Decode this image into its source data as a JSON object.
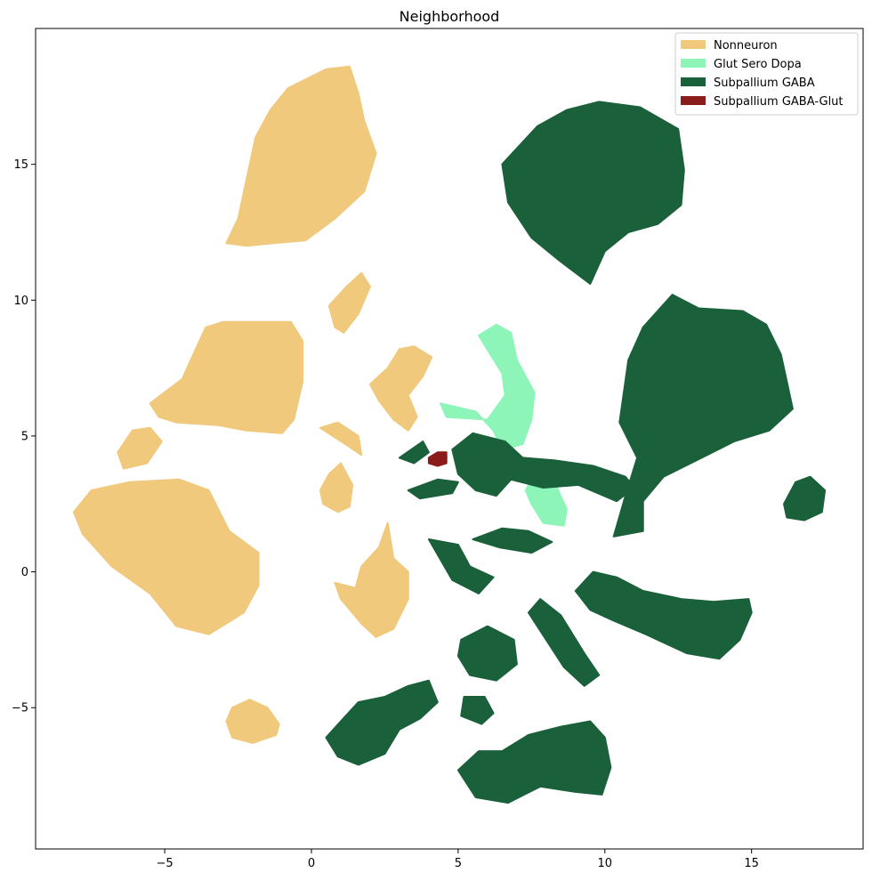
{
  "chart_data": {
    "type": "scatter",
    "title": "Neighborhood",
    "xlabel": "",
    "ylabel": "",
    "xlim": [
      -9.4,
      18.8
    ],
    "ylim": [
      -10.2,
      20.0
    ],
    "xticks": [
      -5,
      0,
      5,
      10,
      15
    ],
    "yticks": [
      -5,
      0,
      5,
      10,
      15
    ],
    "grid": false,
    "legend_position": "top-right",
    "series": [
      {
        "name": "Nonneuron",
        "color": "#f0c97d",
        "clusters": [
          [
            [
              -2.9,
              12.1
            ],
            [
              -2.5,
              13.0
            ],
            [
              -2.2,
              14.5
            ],
            [
              -1.9,
              16.0
            ],
            [
              -1.4,
              17.0
            ],
            [
              -0.8,
              17.8
            ],
            [
              0.5,
              18.5
            ],
            [
              1.3,
              18.6
            ],
            [
              1.6,
              17.6
            ],
            [
              1.8,
              16.6
            ],
            [
              2.2,
              15.4
            ],
            [
              1.8,
              14.0
            ],
            [
              0.8,
              13.0
            ],
            [
              -0.2,
              12.2
            ],
            [
              -1.3,
              12.1
            ],
            [
              -2.2,
              12.0
            ]
          ],
          [
            [
              -3.6,
              9.0
            ],
            [
              -3.0,
              9.2
            ],
            [
              -0.7,
              9.2
            ],
            [
              -0.3,
              8.5
            ],
            [
              -0.3,
              7.0
            ],
            [
              -0.6,
              5.6
            ],
            [
              -1.0,
              5.1
            ],
            [
              -2.2,
              5.2
            ],
            [
              -3.2,
              5.4
            ],
            [
              -4.6,
              5.5
            ],
            [
              -5.2,
              5.7
            ],
            [
              -5.5,
              6.2
            ],
            [
              -4.4,
              7.1
            ],
            [
              -3.9,
              8.3
            ]
          ],
          [
            [
              -8.1,
              2.2
            ],
            [
              -7.5,
              3.0
            ],
            [
              -6.2,
              3.3
            ],
            [
              -4.5,
              3.4
            ],
            [
              -3.5,
              3.0
            ],
            [
              -2.8,
              1.5
            ],
            [
              -1.8,
              0.7
            ],
            [
              -1.8,
              -0.5
            ],
            [
              -2.3,
              -1.5
            ],
            [
              -3.5,
              -2.3
            ],
            [
              -4.6,
              -2.0
            ],
            [
              -5.5,
              -0.8
            ],
            [
              -6.8,
              0.2
            ],
            [
              -7.8,
              1.4
            ]
          ],
          [
            [
              -6.6,
              4.4
            ],
            [
              -6.1,
              5.2
            ],
            [
              -5.5,
              5.3
            ],
            [
              -5.1,
              4.8
            ],
            [
              -5.6,
              4.0
            ],
            [
              -6.4,
              3.8
            ]
          ],
          [
            [
              -2.7,
              -5.0
            ],
            [
              -2.1,
              -4.7
            ],
            [
              -1.5,
              -5.0
            ],
            [
              -1.1,
              -5.6
            ],
            [
              -1.2,
              -6.0
            ],
            [
              -2.0,
              -6.3
            ],
            [
              -2.7,
              -6.1
            ],
            [
              -2.9,
              -5.5
            ]
          ],
          [
            [
              0.8,
              9.0
            ],
            [
              0.6,
              9.8
            ],
            [
              1.2,
              10.5
            ],
            [
              1.7,
              11.0
            ],
            [
              2.0,
              10.5
            ],
            [
              1.6,
              9.5
            ],
            [
              1.1,
              8.8
            ]
          ],
          [
            [
              2.6,
              7.5
            ],
            [
              3.0,
              8.2
            ],
            [
              3.5,
              8.3
            ],
            [
              4.1,
              7.9
            ],
            [
              3.8,
              7.2
            ],
            [
              3.3,
              6.5
            ],
            [
              3.6,
              5.7
            ],
            [
              3.3,
              5.2
            ],
            [
              2.8,
              5.6
            ],
            [
              2.3,
              6.3
            ],
            [
              2.0,
              6.9
            ]
          ],
          [
            [
              1.5,
              -0.6
            ],
            [
              1.7,
              0.2
            ],
            [
              2.3,
              0.9
            ],
            [
              2.6,
              1.8
            ],
            [
              2.8,
              0.5
            ],
            [
              3.3,
              0.0
            ],
            [
              3.3,
              -1.0
            ],
            [
              2.8,
              -2.1
            ],
            [
              2.2,
              -2.4
            ],
            [
              1.7,
              -1.9
            ],
            [
              1.0,
              -1.0
            ],
            [
              0.8,
              -0.4
            ]
          ],
          [
            [
              0.3,
              3.0
            ],
            [
              0.6,
              3.6
            ],
            [
              1.0,
              4.0
            ],
            [
              1.4,
              3.2
            ],
            [
              1.3,
              2.4
            ],
            [
              0.9,
              2.2
            ],
            [
              0.4,
              2.5
            ]
          ],
          [
            [
              0.3,
              5.3
            ],
            [
              0.9,
              5.5
            ],
            [
              1.6,
              5.0
            ],
            [
              1.7,
              4.3
            ],
            [
              1.3,
              4.6
            ]
          ]
        ]
      },
      {
        "name": "Glut Sero Dopa",
        "color": "#8ef5b9",
        "clusters": [
          [
            [
              5.7,
              8.7
            ],
            [
              6.3,
              9.1
            ],
            [
              6.8,
              8.8
            ],
            [
              7.0,
              7.8
            ],
            [
              7.6,
              6.6
            ],
            [
              7.5,
              5.6
            ],
            [
              7.2,
              4.7
            ],
            [
              6.5,
              4.5
            ],
            [
              6.2,
              5.2
            ],
            [
              5.6,
              5.9
            ],
            [
              4.4,
              6.2
            ],
            [
              4.6,
              5.7
            ],
            [
              6.0,
              5.6
            ],
            [
              6.6,
              6.5
            ],
            [
              6.5,
              7.3
            ]
          ],
          [
            [
              7.6,
              3.6
            ],
            [
              8.2,
              3.5
            ],
            [
              8.7,
              2.3
            ],
            [
              8.6,
              1.7
            ],
            [
              7.9,
              1.8
            ],
            [
              7.5,
              2.5
            ],
            [
              7.3,
              3.0
            ]
          ]
        ]
      },
      {
        "name": "Subpallium GABA",
        "color": "#1a603a",
        "clusters": [
          [
            [
              6.5,
              15.0
            ],
            [
              7.7,
              16.4
            ],
            [
              8.7,
              17.0
            ],
            [
              9.8,
              17.3
            ],
            [
              11.2,
              17.1
            ],
            [
              12.5,
              16.3
            ],
            [
              12.7,
              14.8
            ],
            [
              12.6,
              13.5
            ],
            [
              11.8,
              12.8
            ],
            [
              10.8,
              12.5
            ],
            [
              10.0,
              11.8
            ],
            [
              9.5,
              10.6
            ],
            [
              8.4,
              11.5
            ],
            [
              7.5,
              12.3
            ],
            [
              6.7,
              13.6
            ]
          ],
          [
            [
              10.8,
              7.8
            ],
            [
              11.3,
              9.0
            ],
            [
              12.3,
              10.2
            ],
            [
              13.2,
              9.7
            ],
            [
              14.7,
              9.6
            ],
            [
              15.5,
              9.1
            ],
            [
              16.0,
              8.0
            ],
            [
              16.4,
              6.0
            ],
            [
              15.6,
              5.2
            ],
            [
              14.4,
              4.8
            ],
            [
              13.3,
              4.2
            ],
            [
              12.0,
              3.5
            ],
            [
              11.3,
              2.6
            ],
            [
              11.3,
              1.5
            ],
            [
              10.3,
              1.3
            ],
            [
              10.7,
              2.8
            ],
            [
              11.1,
              4.2
            ],
            [
              10.5,
              5.5
            ]
          ],
          [
            [
              9.0,
              -0.7
            ],
            [
              9.6,
              0.0
            ],
            [
              10.4,
              -0.2
            ],
            [
              11.3,
              -0.7
            ],
            [
              12.6,
              -1.0
            ],
            [
              13.7,
              -1.1
            ],
            [
              14.9,
              -1.0
            ],
            [
              15.0,
              -1.5
            ],
            [
              14.6,
              -2.5
            ],
            [
              13.9,
              -3.2
            ],
            [
              12.8,
              -3.0
            ],
            [
              11.4,
              -2.3
            ],
            [
              10.3,
              -1.8
            ],
            [
              9.5,
              -1.4
            ]
          ],
          [
            [
              4.8,
              4.5
            ],
            [
              5.5,
              5.1
            ],
            [
              6.6,
              4.8
            ],
            [
              7.2,
              4.2
            ],
            [
              8.3,
              4.1
            ],
            [
              9.6,
              3.9
            ],
            [
              10.7,
              3.5
            ],
            [
              11.0,
              3.1
            ],
            [
              10.4,
              2.6
            ],
            [
              9.1,
              3.2
            ],
            [
              7.9,
              3.1
            ],
            [
              6.8,
              3.4
            ],
            [
              6.3,
              2.8
            ],
            [
              5.6,
              3.0
            ],
            [
              5.0,
              3.6
            ]
          ],
          [
            [
              3.0,
              4.2
            ],
            [
              3.8,
              4.8
            ],
            [
              4.0,
              4.4
            ],
            [
              3.5,
              4.0
            ]
          ],
          [
            [
              3.3,
              3.0
            ],
            [
              4.3,
              3.4
            ],
            [
              5.0,
              3.3
            ],
            [
              4.8,
              2.9
            ],
            [
              3.7,
              2.7
            ]
          ],
          [
            [
              4.0,
              1.2
            ],
            [
              5.0,
              1.0
            ],
            [
              5.4,
              0.2
            ],
            [
              6.2,
              -0.2
            ],
            [
              5.7,
              -0.8
            ],
            [
              4.8,
              -0.3
            ]
          ],
          [
            [
              5.5,
              1.2
            ],
            [
              6.5,
              1.6
            ],
            [
              7.4,
              1.5
            ],
            [
              8.2,
              1.1
            ],
            [
              7.5,
              0.7
            ],
            [
              6.4,
              0.9
            ]
          ],
          [
            [
              7.8,
              -1.0
            ],
            [
              8.5,
              -1.6
            ],
            [
              8.9,
              -2.3
            ],
            [
              9.3,
              -3.0
            ],
            [
              9.8,
              -3.8
            ],
            [
              9.3,
              -4.2
            ],
            [
              8.6,
              -3.5
            ],
            [
              8.0,
              -2.5
            ],
            [
              7.4,
              -1.5
            ]
          ],
          [
            [
              5.1,
              -2.5
            ],
            [
              6.0,
              -2.0
            ],
            [
              6.9,
              -2.5
            ],
            [
              7.0,
              -3.4
            ],
            [
              6.3,
              -4.0
            ],
            [
              5.4,
              -3.8
            ],
            [
              5.0,
              -3.1
            ]
          ],
          [
            [
              5.2,
              -4.6
            ],
            [
              5.9,
              -4.6
            ],
            [
              6.2,
              -5.2
            ],
            [
              5.8,
              -5.6
            ],
            [
              5.1,
              -5.3
            ]
          ],
          [
            [
              5.0,
              -7.3
            ],
            [
              5.7,
              -6.6
            ],
            [
              6.5,
              -6.6
            ],
            [
              7.4,
              -6.0
            ],
            [
              8.5,
              -5.7
            ],
            [
              9.5,
              -5.5
            ],
            [
              10.0,
              -6.1
            ],
            [
              10.2,
              -7.2
            ],
            [
              9.9,
              -8.2
            ],
            [
              9.0,
              -8.1
            ],
            [
              7.8,
              -7.9
            ],
            [
              6.7,
              -8.5
            ],
            [
              5.6,
              -8.3
            ]
          ],
          [
            [
              0.5,
              -6.1
            ],
            [
              1.0,
              -5.5
            ],
            [
              1.6,
              -4.8
            ],
            [
              2.5,
              -4.6
            ],
            [
              3.3,
              -4.2
            ],
            [
              4.0,
              -4.0
            ],
            [
              4.3,
              -4.8
            ],
            [
              3.7,
              -5.4
            ],
            [
              3.0,
              -5.8
            ],
            [
              2.5,
              -6.7
            ],
            [
              1.6,
              -7.1
            ],
            [
              0.9,
              -6.8
            ]
          ],
          [
            [
              16.1,
              2.5
            ],
            [
              16.5,
              3.3
            ],
            [
              17.0,
              3.5
            ],
            [
              17.5,
              3.0
            ],
            [
              17.4,
              2.2
            ],
            [
              16.8,
              1.9
            ],
            [
              16.2,
              2.0
            ]
          ]
        ]
      },
      {
        "name": "Subpallium GABA-Glut",
        "color": "#8b1c1c",
        "clusters": [
          [
            [
              4.0,
              4.2
            ],
            [
              4.3,
              4.4
            ],
            [
              4.6,
              4.4
            ],
            [
              4.6,
              4.0
            ],
            [
              4.3,
              3.9
            ],
            [
              4.0,
              4.0
            ]
          ]
        ]
      }
    ]
  }
}
